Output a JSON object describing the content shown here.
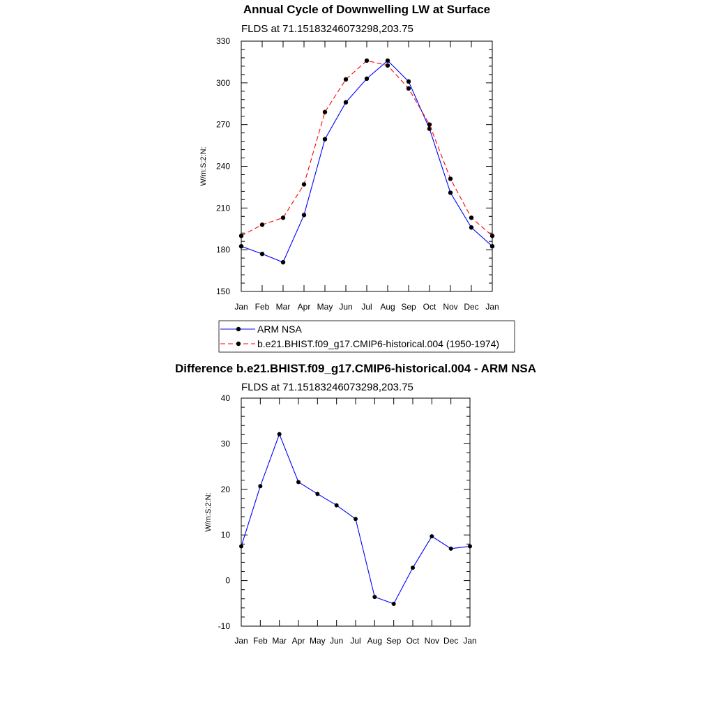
{
  "chart_data": [
    {
      "type": "line",
      "title": "Annual Cycle of Downwelling LW at Surface",
      "subtitle": "FLDS at 71.15183246073298,203.75",
      "xlabel": "",
      "ylabel": "W/m:S:2:N:",
      "categories": [
        "Jan",
        "Feb",
        "Mar",
        "Apr",
        "May",
        "Jun",
        "Jul",
        "Aug",
        "Sep",
        "Oct",
        "Nov",
        "Dec",
        "Jan"
      ],
      "ylim": [
        150,
        330
      ],
      "yticks": [
        "150",
        "180",
        "210",
        "240",
        "270",
        "300",
        "330"
      ],
      "series": [
        {
          "name": "ARM NSA",
          "color": "#0000ff",
          "dash": "solid",
          "values": [
            182.5,
            177,
            171,
            205,
            259.5,
            286,
            303,
            316,
            301,
            267,
            221,
            196,
            182.5
          ]
        },
        {
          "name": "b.e21.BHIST.f09_g17.CMIP6-historical.004 (1950-1974)",
          "color": "#ff0000",
          "dash": "dashed",
          "values": [
            190,
            198,
            203,
            227,
            279,
            302.5,
            316,
            312.5,
            296,
            270,
            231,
            203,
            190
          ]
        }
      ],
      "legend": {
        "entries": [
          "ARM NSA",
          "b.e21.BHIST.f09_g17.CMIP6-historical.004 (1950-1974)"
        ],
        "placement": "bottom"
      }
    },
    {
      "type": "line",
      "title": "Difference b.e21.BHIST.f09_g17.CMIP6-historical.004 - ARM NSA",
      "subtitle": "FLDS at 71.15183246073298,203.75",
      "xlabel": "",
      "ylabel": "W/m:S:2:N:",
      "categories": [
        "Jan",
        "Feb",
        "Mar",
        "Apr",
        "May",
        "Jun",
        "Jul",
        "Aug",
        "Sep",
        "Oct",
        "Nov",
        "Dec",
        "Jan"
      ],
      "ylim": [
        -10,
        40
      ],
      "yticks": [
        "-10",
        "0",
        "10",
        "20",
        "30",
        "40"
      ],
      "series": [
        {
          "name": "Difference",
          "color": "#0000ff",
          "dash": "solid",
          "values": [
            7.5,
            20.7,
            32.1,
            21.6,
            19,
            16.5,
            13.5,
            -3.6,
            -5.1,
            2.8,
            9.7,
            7,
            7.5
          ]
        }
      ]
    }
  ]
}
